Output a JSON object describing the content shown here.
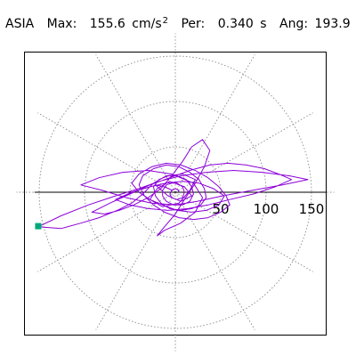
{
  "header": {
    "station": "ASIA",
    "max_label": "Max:",
    "max_value": "155.6",
    "max_unit": "cm/s",
    "max_unit_exp": "2",
    "per_label": "Per:",
    "per_value": "0.340",
    "per_unit": "s",
    "ang_label": "Ang:",
    "ang_value": "193.9"
  },
  "colors": {
    "trace": "#8c00d9",
    "marker": "#00a87a",
    "grid": "#8a8a8a",
    "frame": "#000000"
  },
  "chart_data": {
    "type": "polar-orbit",
    "title": "",
    "rlim": [
      0,
      175
    ],
    "ring_radii": [
      50,
      100,
      150
    ],
    "spoke_angles_deg": [
      30,
      60,
      90,
      120,
      150,
      180,
      210,
      240,
      270,
      300,
      330,
      360
    ],
    "ticks": [
      {
        "value": 50,
        "label": "50"
      },
      {
        "value": 100,
        "label": "100"
      },
      {
        "value": 150,
        "label": "150"
      }
    ],
    "peak": {
      "magnitude": 155.6,
      "angle_deg": 193.9
    },
    "grid": true,
    "legend": "none",
    "series": [
      {
        "points": [
          [
            -3,
            2
          ],
          [
            -12,
            6
          ],
          [
            -22,
            8
          ],
          [
            -8,
            -4
          ],
          [
            6,
            -10
          ],
          [
            18,
            -4
          ],
          [
            10,
            6
          ],
          [
            -6,
            12
          ],
          [
            -20,
            4
          ],
          [
            -28,
            -8
          ],
          [
            -14,
            -16
          ],
          [
            4,
            -12
          ],
          [
            16,
            2
          ],
          [
            22,
            14
          ],
          [
            8,
            20
          ],
          [
            -10,
            18
          ],
          [
            -24,
            10
          ],
          [
            -36,
            -2
          ],
          [
            -48,
            -12
          ],
          [
            -64,
            -20
          ],
          [
            -84,
            -28
          ],
          [
            -104,
            -34
          ],
          [
            -126,
            -40
          ],
          [
            -151,
            -38
          ],
          [
            -126,
            -26
          ],
          [
            -96,
            -14
          ],
          [
            -66,
            -4
          ],
          [
            -40,
            4
          ],
          [
            -18,
            12
          ],
          [
            6,
            18
          ],
          [
            34,
            22
          ],
          [
            64,
            24
          ],
          [
            96,
            22
          ],
          [
            126,
            18
          ],
          [
            146,
            14
          ],
          [
            118,
            8
          ],
          [
            84,
            2
          ],
          [
            52,
            -4
          ],
          [
            24,
            -10
          ],
          [
            0,
            -14
          ],
          [
            -26,
            -12
          ],
          [
            -54,
            -6
          ],
          [
            -80,
            2
          ],
          [
            -104,
            8
          ],
          [
            -84,
            16
          ],
          [
            -58,
            22
          ],
          [
            -30,
            24
          ],
          [
            -4,
            20
          ],
          [
            20,
            10
          ],
          [
            30,
            -6
          ],
          [
            22,
            -22
          ],
          [
            6,
            -34
          ],
          [
            -12,
            -42
          ],
          [
            -20,
            -48
          ],
          [
            -12,
            -38
          ],
          [
            0,
            -24
          ],
          [
            10,
            -8
          ],
          [
            22,
            10
          ],
          [
            32,
            28
          ],
          [
            38,
            46
          ],
          [
            30,
            58
          ],
          [
            18,
            50
          ],
          [
            8,
            34
          ],
          [
            -4,
            18
          ],
          [
            -16,
            4
          ],
          [
            -30,
            -6
          ],
          [
            -46,
            -14
          ],
          [
            -62,
            -20
          ],
          [
            -78,
            -24
          ],
          [
            -92,
            -22
          ],
          [
            -72,
            -12
          ],
          [
            -50,
            -2
          ],
          [
            -28,
            8
          ],
          [
            -6,
            16
          ],
          [
            16,
            24
          ],
          [
            38,
            30
          ],
          [
            58,
            32
          ],
          [
            78,
            30
          ],
          [
            98,
            26
          ],
          [
            114,
            20
          ],
          [
            128,
            14
          ],
          [
            110,
            6
          ],
          [
            86,
            -2
          ],
          [
            60,
            -8
          ],
          [
            36,
            -14
          ],
          [
            14,
            -18
          ],
          [
            -8,
            -20
          ],
          [
            -30,
            -18
          ],
          [
            -50,
            -14
          ],
          [
            -66,
            -8
          ],
          [
            -48,
            0
          ],
          [
            -28,
            6
          ],
          [
            -10,
            10
          ],
          [
            8,
            12
          ],
          [
            26,
            10
          ],
          [
            42,
            4
          ],
          [
            54,
            -4
          ],
          [
            48,
            -14
          ],
          [
            34,
            -20
          ],
          [
            18,
            -22
          ],
          [
            2,
            -20
          ],
          [
            -14,
            -14
          ],
          [
            -28,
            -8
          ],
          [
            -40,
            0
          ],
          [
            -48,
            10
          ],
          [
            -40,
            20
          ],
          [
            -26,
            28
          ],
          [
            -10,
            32
          ],
          [
            6,
            30
          ],
          [
            22,
            24
          ],
          [
            36,
            16
          ],
          [
            48,
            6
          ],
          [
            56,
            -4
          ],
          [
            60,
            -14
          ],
          [
            50,
            -22
          ],
          [
            36,
            -28
          ],
          [
            20,
            -30
          ],
          [
            4,
            -28
          ],
          [
            -12,
            -22
          ],
          [
            -24,
            -14
          ],
          [
            -34,
            -4
          ],
          [
            -40,
            8
          ],
          [
            -36,
            18
          ],
          [
            -24,
            26
          ],
          [
            -10,
            30
          ],
          [
            4,
            28
          ],
          [
            16,
            22
          ],
          [
            26,
            14
          ],
          [
            32,
            4
          ],
          [
            34,
            -6
          ],
          [
            28,
            -14
          ],
          [
            18,
            -18
          ],
          [
            6,
            -20
          ],
          [
            -6,
            -18
          ],
          [
            -16,
            -12
          ],
          [
            -22,
            -4
          ],
          [
            -24,
            6
          ],
          [
            -18,
            14
          ],
          [
            -8,
            18
          ],
          [
            2,
            18
          ],
          [
            12,
            14
          ],
          [
            18,
            6
          ],
          [
            20,
            -2
          ],
          [
            16,
            -10
          ],
          [
            8,
            -14
          ],
          [
            -2,
            -14
          ],
          [
            -10,
            -10
          ],
          [
            -14,
            -4
          ],
          [
            -14,
            2
          ],
          [
            -10,
            8
          ],
          [
            -4,
            10
          ],
          [
            2,
            10
          ],
          [
            8,
            6
          ],
          [
            10,
            0
          ],
          [
            8,
            -6
          ],
          [
            2,
            -8
          ],
          [
            -4,
            -6
          ],
          [
            -6,
            -2
          ],
          [
            -4,
            2
          ],
          [
            0,
            4
          ],
          [
            4,
            2
          ],
          [
            3,
            0
          ]
        ]
      }
    ]
  }
}
